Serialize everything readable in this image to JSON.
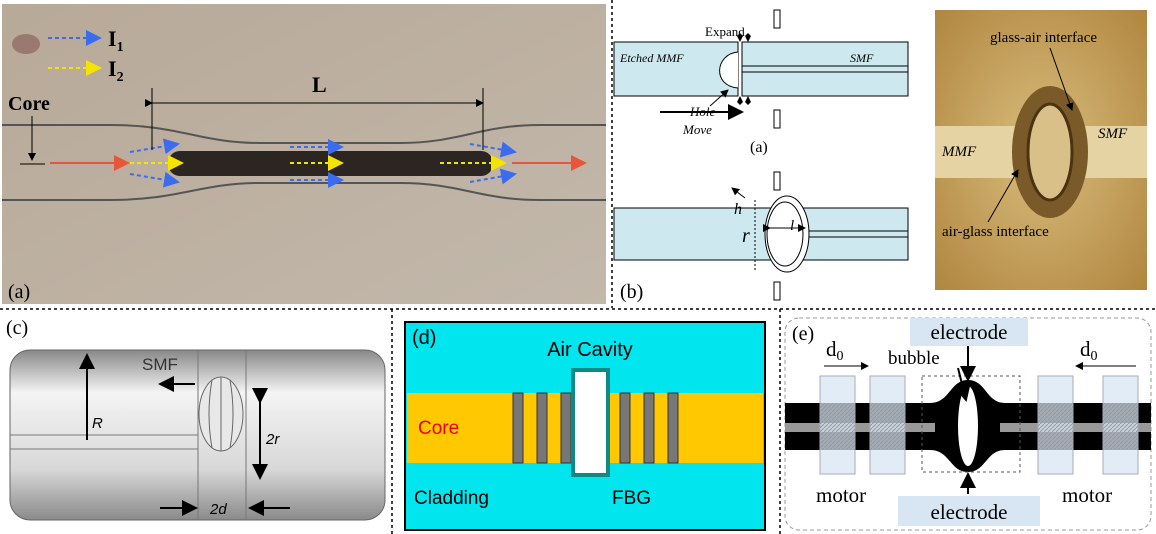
{
  "panel_a": {
    "legend": [
      {
        "base": "I",
        "sub": "1"
      },
      {
        "base": "I",
        "sub": "2"
      }
    ],
    "core": "Core",
    "length": "L",
    "tag": "(a)"
  },
  "panel_b": {
    "expand": "Expand",
    "etched_mmf": "Etched  MMF",
    "smf": "SMF",
    "hole": "Hole",
    "move": "Move",
    "sub_a": "(a)",
    "h": "h",
    "r": "r",
    "l": "l",
    "tag": "(b)",
    "photo": {
      "glass_air": "glass-air interface",
      "mmf": "MMF",
      "smf": "SMF",
      "air_glass": "air-glass interface"
    }
  },
  "panel_c": {
    "tag": "(c)",
    "smf": "SMF",
    "R": "R",
    "r2": "2r",
    "d2": "2d"
  },
  "panel_d": {
    "tag": "(d)",
    "air_cavity": "Air Cavity",
    "core": "Core",
    "cladding": "Cladding",
    "fbg": "FBG"
  },
  "panel_e": {
    "tag": "(e)",
    "d0": [
      {
        "base": "d",
        "sub": "0"
      },
      {
        "base": "d",
        "sub": "0"
      }
    ],
    "bubble": "bubble",
    "electrode_top": "electrode",
    "electrode_bottom": "electrode",
    "motor": [
      "motor",
      "motor"
    ]
  }
}
